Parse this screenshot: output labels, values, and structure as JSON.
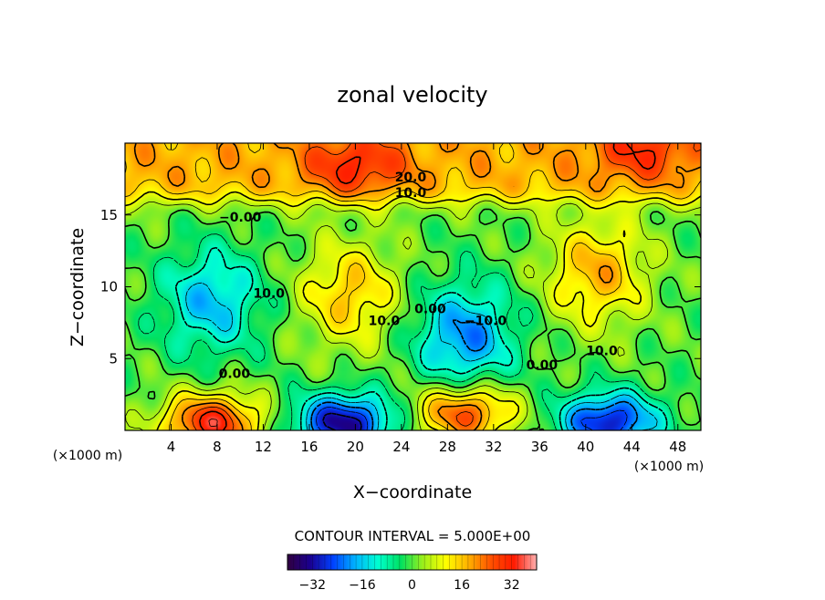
{
  "chart_data": {
    "type": "heatmap",
    "title": "zonal velocity",
    "xlabel": "X−coordinate",
    "ylabel": "Z−coordinate",
    "x_unit": "(×1000 m)",
    "y_unit": "(×1000 m)",
    "xlim": [
      0,
      50
    ],
    "ylim": [
      0,
      20
    ],
    "x_ticks": [
      "4",
      "8",
      "12",
      "16",
      "20",
      "24",
      "28",
      "32",
      "36",
      "40",
      "44",
      "48"
    ],
    "y_ticks": [
      "5",
      "10",
      "15"
    ],
    "contour_interval_text": "CONTOUR INTERVAL = 5.000E+00",
    "contour_interval": 5.0,
    "colorbar": {
      "min": -40,
      "max": 40,
      "ticks": [
        "−32",
        "−16",
        "0",
        "16",
        "32"
      ],
      "colors": [
        "#300040",
        "#1a0090",
        "#0040ff",
        "#00b4ff",
        "#00ffd0",
        "#00e060",
        "#9ef01a",
        "#ffff00",
        "#ffb000",
        "#ff5000",
        "#ff1a00",
        "#ffb0b0"
      ]
    },
    "contour_labels": [
      {
        "text": "20.0",
        "x": 24.8,
        "y": 17.6
      },
      {
        "text": "10.0",
        "x": 24.8,
        "y": 16.5
      },
      {
        "text": "−0.00",
        "x": 10.0,
        "y": 14.8
      },
      {
        "text": "10.0",
        "x": 12.5,
        "y": 9.5
      },
      {
        "text": "10.0",
        "x": 22.5,
        "y": 7.6
      },
      {
        "text": "0.00",
        "x": 26.5,
        "y": 8.4
      },
      {
        "text": "−10.0",
        "x": 31.3,
        "y": 7.6
      },
      {
        "text": "0.00",
        "x": 36.2,
        "y": 4.5
      },
      {
        "text": "10.0",
        "x": 41.4,
        "y": 5.5
      },
      {
        "text": "0.00",
        "x": 9.5,
        "y": 3.9
      }
    ],
    "features": [
      {
        "x": 7.5,
        "z": 9.0,
        "value": -17
      },
      {
        "x": 19.5,
        "z": 9.5,
        "value": 16
      },
      {
        "x": 29.5,
        "z": 6.5,
        "value": -21
      },
      {
        "x": 41.0,
        "z": 11.0,
        "value": 18
      },
      {
        "x": 7.5,
        "z": 0.5,
        "value": 32
      },
      {
        "x": 19.0,
        "z": 0.5,
        "value": -33
      },
      {
        "x": 29.5,
        "z": 1.2,
        "value": 27
      },
      {
        "x": 42.0,
        "z": 0.6,
        "value": -30
      },
      {
        "x": 20.0,
        "z": 18.5,
        "value": 30
      },
      {
        "x": 45.0,
        "z": 19.5,
        "value": 27
      }
    ]
  }
}
